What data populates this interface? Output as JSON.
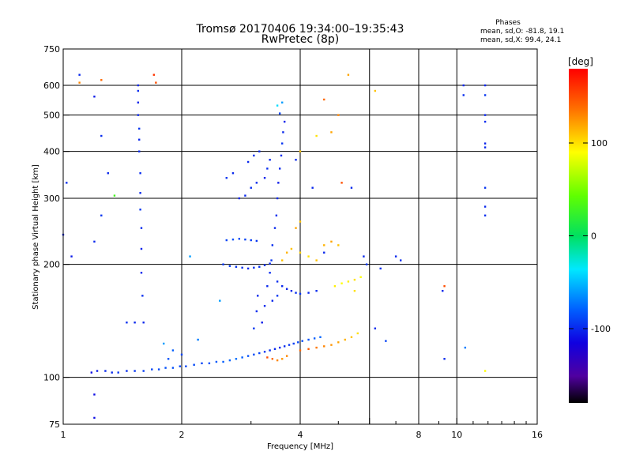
{
  "header": {
    "title_line1": "Tromsø 20170406 19:34:00–19:35:43",
    "title_line2": "RwPretec (8p)"
  },
  "phase_info": {
    "heading": "Phases",
    "line_o": "mean, sd,O: -81.8, 19.1",
    "line_x": "mean, sd,X:  99.4, 24.1"
  },
  "chart_data": {
    "type": "scatter",
    "xlabel": "Frequency [MHz]",
    "ylabel": "Stationary phase Virtual Height [km]",
    "x_scale": "log",
    "y_scale": "log",
    "xlim": [
      1,
      16
    ],
    "ylim": [
      75,
      750
    ],
    "x_ticks": [
      {
        "v": 1,
        "label": "1"
      },
      {
        "v": 2,
        "label": "2"
      },
      {
        "v": 4,
        "label": "4"
      },
      {
        "v": 6,
        "label": ""
      },
      {
        "v": 8,
        "label": "8"
      },
      {
        "v": 10,
        "label": "10"
      },
      {
        "v": 16,
        "label": "16"
      }
    ],
    "x_minor": [
      3,
      5,
      7,
      9,
      11,
      12,
      13,
      14,
      15
    ],
    "x_grid": [
      2,
      4,
      6,
      8,
      10
    ],
    "y_ticks": [
      {
        "v": 75,
        "label": "75"
      },
      {
        "v": 100,
        "label": "100"
      },
      {
        "v": 200,
        "label": "200"
      },
      {
        "v": 300,
        "label": "300"
      },
      {
        "v": 400,
        "label": "400"
      },
      {
        "v": 500,
        "label": "500"
      },
      {
        "v": 600,
        "label": "600"
      },
      {
        "v": 750,
        "label": "750"
      }
    ],
    "y_grid": [
      100,
      200,
      300,
      400,
      500,
      600
    ],
    "grid": true,
    "colorbar": {
      "unit": "[deg]",
      "range": [
        -180,
        180
      ],
      "ticks": [
        {
          "v": 100,
          "label": "100"
        },
        {
          "v": 0,
          "label": "0"
        },
        {
          "v": -100,
          "label": "-100"
        }
      ]
    },
    "series": [
      {
        "color_by": "phase_deg",
        "points": [
          [
            1.18,
            103,
            -110
          ],
          [
            1.22,
            104,
            -105
          ],
          [
            1.28,
            104,
            -100
          ],
          [
            1.33,
            103,
            -100
          ],
          [
            1.38,
            103,
            -95
          ],
          [
            1.45,
            104,
            -98
          ],
          [
            1.52,
            104,
            -95
          ],
          [
            1.6,
            104,
            -92
          ],
          [
            1.68,
            105,
            -90
          ],
          [
            1.75,
            105,
            -88
          ],
          [
            1.82,
            106,
            -85
          ],
          [
            1.9,
            106,
            -85
          ],
          [
            1.98,
            107,
            -88
          ],
          [
            2.05,
            107,
            -90
          ],
          [
            2.15,
            108,
            -88
          ],
          [
            2.25,
            109,
            -90
          ],
          [
            2.35,
            109,
            -85
          ],
          [
            2.45,
            110,
            -82
          ],
          [
            2.55,
            110,
            -80
          ],
          [
            2.65,
            111,
            -78
          ],
          [
            2.75,
            112,
            -75
          ],
          [
            2.85,
            113,
            -80
          ],
          [
            2.95,
            114,
            -85
          ],
          [
            3.05,
            115,
            -88
          ],
          [
            3.15,
            116,
            -90
          ],
          [
            3.25,
            117,
            -95
          ],
          [
            3.35,
            118,
            -98
          ],
          [
            3.45,
            119,
            -100
          ],
          [
            3.55,
            120,
            -100
          ],
          [
            3.65,
            121,
            -98
          ],
          [
            3.75,
            122,
            -95
          ],
          [
            3.85,
            123,
            -92
          ],
          [
            3.95,
            124,
            -90
          ],
          [
            4.05,
            125,
            -88
          ],
          [
            4.2,
            126,
            -85
          ],
          [
            4.35,
            127,
            -80
          ],
          [
            4.5,
            128,
            -78
          ],
          [
            3.3,
            113,
            150
          ],
          [
            3.4,
            112,
            140
          ],
          [
            3.5,
            111,
            130
          ],
          [
            3.6,
            112,
            125
          ],
          [
            3.7,
            114,
            130
          ],
          [
            4.0,
            118,
            140
          ],
          [
            4.2,
            119,
            145
          ],
          [
            4.4,
            120,
            135
          ],
          [
            4.6,
            121,
            130
          ],
          [
            4.8,
            122,
            125
          ],
          [
            5.0,
            124,
            120
          ],
          [
            5.2,
            126,
            115
          ],
          [
            5.4,
            128,
            110
          ],
          [
            5.6,
            131,
            100
          ],
          [
            3.05,
            135,
            -95
          ],
          [
            3.1,
            150,
            -98
          ],
          [
            3.12,
            165,
            -100
          ],
          [
            3.2,
            140,
            -105
          ],
          [
            3.25,
            155,
            -100
          ],
          [
            3.3,
            175,
            -100
          ],
          [
            3.35,
            190,
            -98
          ],
          [
            3.38,
            205,
            -95
          ],
          [
            3.4,
            225,
            -98
          ],
          [
            3.45,
            250,
            -100
          ],
          [
            3.48,
            270,
            -98
          ],
          [
            3.5,
            300,
            -100
          ],
          [
            3.52,
            330,
            -105
          ],
          [
            3.55,
            360,
            -100
          ],
          [
            3.58,
            390,
            -98
          ],
          [
            3.6,
            420,
            -95
          ],
          [
            3.62,
            450,
            -100
          ],
          [
            3.65,
            480,
            -102
          ],
          [
            3.55,
            505,
            -90
          ],
          [
            3.5,
            530,
            -40
          ],
          [
            3.6,
            540,
            -60
          ],
          [
            3.35,
            380,
            -100
          ],
          [
            3.3,
            360,
            -98
          ],
          [
            3.25,
            340,
            -102
          ],
          [
            3.1,
            330,
            -100
          ],
          [
            3.0,
            320,
            -98
          ],
          [
            2.9,
            305,
            -100
          ],
          [
            2.8,
            300,
            -102
          ],
          [
            2.95,
            375,
            -100
          ],
          [
            3.05,
            390,
            -98
          ],
          [
            3.15,
            400,
            -100
          ],
          [
            2.6,
            340,
            -95
          ],
          [
            2.7,
            350,
            -100
          ],
          [
            2.55,
            200,
            -95
          ],
          [
            2.65,
            198,
            -92
          ],
          [
            2.75,
            197,
            -95
          ],
          [
            2.85,
            196,
            -98
          ],
          [
            2.95,
            195,
            -100
          ],
          [
            3.05,
            196,
            -98
          ],
          [
            3.15,
            197,
            -95
          ],
          [
            3.25,
            199,
            -98
          ],
          [
            3.35,
            201,
            -100
          ],
          [
            2.6,
            232,
            -90
          ],
          [
            2.7,
            233,
            -85
          ],
          [
            2.8,
            234,
            -88
          ],
          [
            2.9,
            233,
            -90
          ],
          [
            3.0,
            232,
            -92
          ],
          [
            3.1,
            231,
            -95
          ],
          [
            3.5,
            180,
            -98
          ],
          [
            3.6,
            175,
            -100
          ],
          [
            3.7,
            172,
            -102
          ],
          [
            3.8,
            170,
            -100
          ],
          [
            3.9,
            168,
            -98
          ],
          [
            4.0,
            167,
            -95
          ],
          [
            4.2,
            168,
            -100
          ],
          [
            4.4,
            170,
            -98
          ],
          [
            3.4,
            160,
            -100
          ],
          [
            3.5,
            165,
            -95
          ],
          [
            3.6,
            205,
            110
          ],
          [
            3.7,
            215,
            115
          ],
          [
            3.8,
            220,
            110
          ],
          [
            4.0,
            215,
            105
          ],
          [
            4.2,
            210,
            100
          ],
          [
            4.4,
            205,
            110
          ],
          [
            4.6,
            225,
            115
          ],
          [
            4.8,
            230,
            120
          ],
          [
            5.0,
            225,
            110
          ],
          [
            4.9,
            175,
            95
          ],
          [
            5.1,
            178,
            90
          ],
          [
            5.3,
            180,
            95
          ],
          [
            5.5,
            182,
            100
          ],
          [
            5.7,
            185,
            90
          ],
          [
            5.5,
            170,
            100
          ],
          [
            1.1,
            640,
            -100
          ],
          [
            1.2,
            560,
            -105
          ],
          [
            1.25,
            440,
            -98
          ],
          [
            1.3,
            350,
            -100
          ],
          [
            1.25,
            270,
            -95
          ],
          [
            1.2,
            230,
            -100
          ],
          [
            1.05,
            210,
            -105
          ],
          [
            1.02,
            330,
            -98
          ],
          [
            1.0,
            240,
            -100
          ],
          [
            1.55,
            600,
            -100
          ],
          [
            1.55,
            580,
            -98
          ],
          [
            1.55,
            540,
            -102
          ],
          [
            1.55,
            500,
            -100
          ],
          [
            1.56,
            460,
            -95
          ],
          [
            1.56,
            430,
            -100
          ],
          [
            1.56,
            400,
            -100
          ],
          [
            1.57,
            350,
            -98
          ],
          [
            1.57,
            310,
            -100
          ],
          [
            1.57,
            280,
            -95
          ],
          [
            1.58,
            250,
            -100
          ],
          [
            1.58,
            220,
            -102
          ],
          [
            1.58,
            190,
            -100
          ],
          [
            1.59,
            165,
            -98
          ],
          [
            1.6,
            140,
            -100
          ],
          [
            1.52,
            140,
            -100
          ],
          [
            1.45,
            140,
            -98
          ],
          [
            1.7,
            640,
            160
          ],
          [
            1.72,
            610,
            150
          ],
          [
            1.1,
            610,
            130
          ],
          [
            1.35,
            305,
            30
          ],
          [
            1.25,
            620,
            140
          ],
          [
            1.2,
            90,
            -110
          ],
          [
            1.2,
            78,
            -110
          ],
          [
            10.4,
            600,
            -100
          ],
          [
            10.4,
            565,
            -98
          ],
          [
            11.8,
            600,
            -100
          ],
          [
            11.8,
            565,
            -95
          ],
          [
            11.8,
            500,
            -100
          ],
          [
            11.8,
            480,
            -98
          ],
          [
            11.8,
            420,
            -102
          ],
          [
            11.8,
            410,
            -100
          ],
          [
            11.8,
            320,
            -95
          ],
          [
            11.8,
            285,
            -100
          ],
          [
            11.8,
            270,
            -98
          ],
          [
            9.2,
            170,
            -100
          ],
          [
            9.3,
            175,
            150
          ],
          [
            9.3,
            112,
            -100
          ],
          [
            10.5,
            120,
            -70
          ],
          [
            11.8,
            104,
            90
          ],
          [
            6.2,
            580,
            110
          ],
          [
            5.3,
            640,
            120
          ],
          [
            4.6,
            550,
            140
          ],
          [
            5.0,
            500,
            130
          ],
          [
            4.8,
            450,
            120
          ],
          [
            4.4,
            440,
            100
          ],
          [
            4.0,
            400,
            110
          ],
          [
            3.9,
            380,
            -100
          ],
          [
            4.3,
            320,
            -100
          ],
          [
            5.1,
            330,
            150
          ],
          [
            5.4,
            320,
            -100
          ],
          [
            5.8,
            210,
            -100
          ],
          [
            5.9,
            200,
            -95
          ],
          [
            6.4,
            195,
            -98
          ],
          [
            7.0,
            210,
            -100
          ],
          [
            7.2,
            205,
            -98
          ],
          [
            6.6,
            125,
            -90
          ],
          [
            6.2,
            135,
            -100
          ],
          [
            4.6,
            215,
            -100
          ],
          [
            4.0,
            260,
            110
          ],
          [
            3.9,
            250,
            120
          ],
          [
            2.1,
            210,
            -60
          ],
          [
            1.8,
            123,
            -60
          ],
          [
            2.2,
            126,
            -70
          ],
          [
            2.5,
            160,
            -60
          ],
          [
            2.0,
            115,
            -90
          ],
          [
            1.9,
            118,
            -80
          ],
          [
            1.85,
            112,
            -85
          ]
        ]
      }
    ]
  }
}
